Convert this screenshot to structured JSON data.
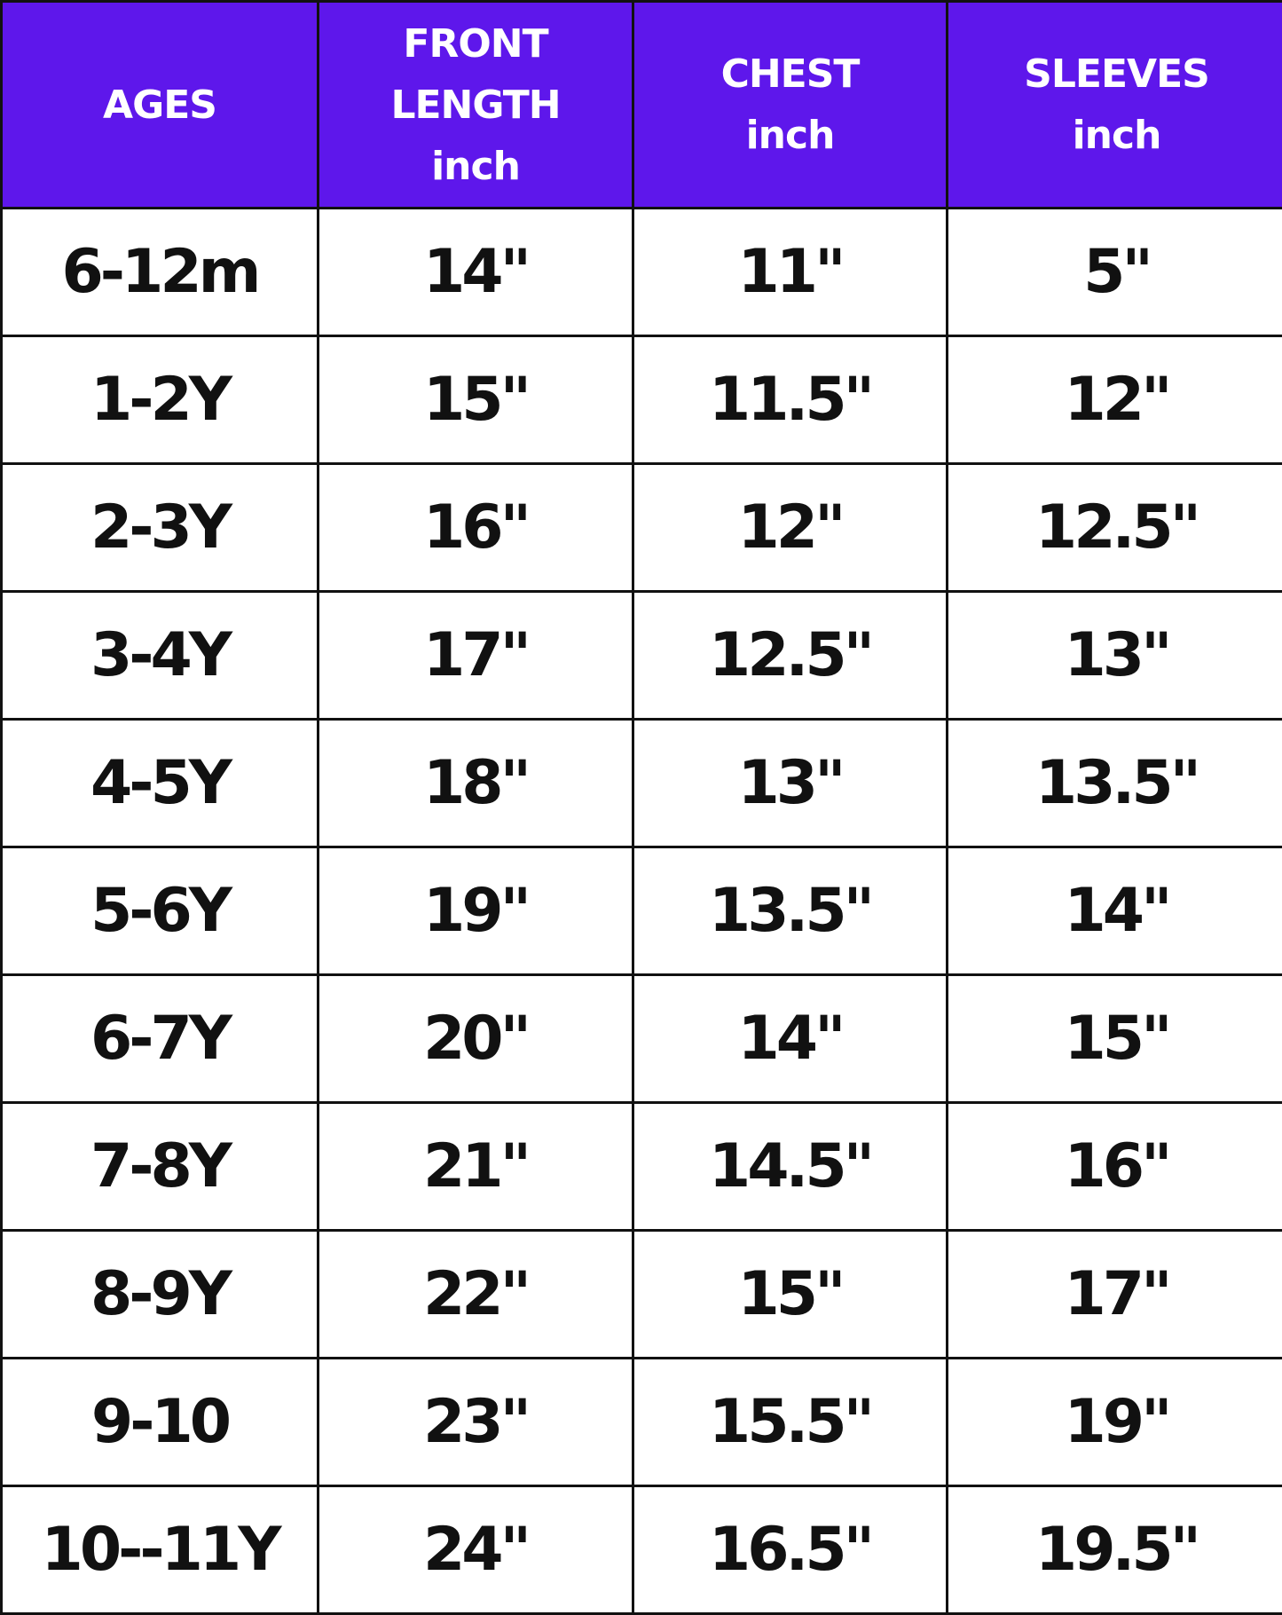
{
  "header_color": "#5E17EB",
  "headers": [
    {
      "lines": [
        "AGES"
      ]
    },
    {
      "lines": [
        "FRONT",
        "LENGTH",
        "inch"
      ]
    },
    {
      "lines": [
        "CHEST",
        "inch"
      ]
    },
    {
      "lines": [
        "SLEEVES",
        "inch"
      ]
    }
  ],
  "rows": [
    [
      "6-12m",
      "14\"",
      "11\"",
      "5\""
    ],
    [
      "1-2Y",
      "15\"",
      "11.5\"",
      "12\""
    ],
    [
      "2-3Y",
      "16\"",
      "12\"",
      "12.5\""
    ],
    [
      "3-4Y",
      "17\"",
      "12.5\"",
      "13\""
    ],
    [
      "4-5Y",
      "18\"",
      "13\"",
      "13.5\""
    ],
    [
      "5-6Y",
      "19\"",
      "13.5\"",
      "14\""
    ],
    [
      "6-7Y",
      "20\"",
      "14\"",
      "15\""
    ],
    [
      "7-8Y",
      "21\"",
      "14.5\"",
      "16\""
    ],
    [
      "8-9Y",
      "22\"",
      "15\"",
      "17\""
    ],
    [
      "9-10",
      "23\"",
      "15.5\"",
      "19\""
    ],
    [
      "10--11Y",
      "24\"",
      "16.5\"",
      "19.5\""
    ]
  ]
}
